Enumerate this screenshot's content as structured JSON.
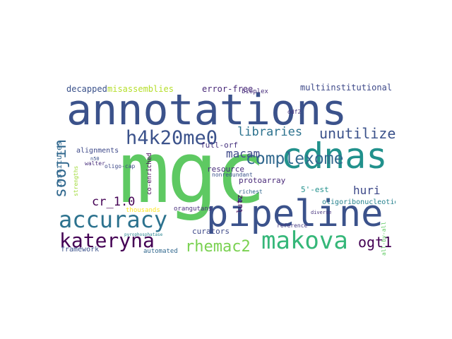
{
  "cloud": {
    "words": [
      {
        "text": "annotations",
        "color": "#3b528b"
      },
      {
        "text": "mgc",
        "color": "#5ec962"
      },
      {
        "text": "pipeline",
        "color": "#3b528b"
      },
      {
        "text": "cdnas",
        "color": "#21918c"
      },
      {
        "text": "accuracy",
        "color": "#2c728e"
      },
      {
        "text": "makova",
        "color": "#35b779"
      },
      {
        "text": "h4k20me0",
        "color": "#3b528b"
      },
      {
        "text": "kateryna",
        "color": "#440154"
      },
      {
        "text": "complexome",
        "color": "#31688e"
      },
      {
        "text": "rhemac2",
        "color": "#7ad151"
      },
      {
        "text": "soojin",
        "color": "#31688e"
      },
      {
        "text": "unutilized",
        "color": "#3b528b"
      },
      {
        "text": "ogt1",
        "color": "#440154"
      },
      {
        "text": "libraries",
        "color": "#2c728e"
      },
      {
        "text": "huri",
        "color": "#3e4989"
      },
      {
        "text": "macam",
        "color": "#3e4989"
      },
      {
        "text": "misassemblies",
        "color": "#b5de2b"
      },
      {
        "text": "error-free",
        "color": "#482878"
      },
      {
        "text": "multiinstitutional",
        "color": "#3e4989"
      },
      {
        "text": "decapped",
        "color": "#3b528b"
      },
      {
        "text": "full-orf",
        "color": "#46327e"
      },
      {
        "text": "resource",
        "color": "#472d7b"
      },
      {
        "text": "cr_1.0",
        "color": "#440154"
      },
      {
        "text": "curators",
        "color": "#3e4989"
      },
      {
        "text": "protoarray",
        "color": "#482878"
      },
      {
        "text": "5'-est",
        "color": "#21918c"
      },
      {
        "text": "framework",
        "color": "#3b528b"
      },
      {
        "text": "institutes",
        "color": "#31688e"
      },
      {
        "text": "alignments",
        "color": "#3e4989"
      },
      {
        "text": "oligoribonucleotide",
        "color": "#26828e"
      },
      {
        "text": "orangutans",
        "color": "#472d7b"
      },
      {
        "text": "automated",
        "color": "#31688e"
      },
      {
        "text": "thousands",
        "color": "#fde725"
      },
      {
        "text": "co-enriched",
        "color": "#440154"
      },
      {
        "text": "oligo-cap",
        "color": "#3e4989"
      },
      {
        "text": "bioplex",
        "color": "#472d7b"
      },
      {
        "text": "odf2",
        "color": "#46327e"
      },
      {
        "text": "lutz",
        "color": "#440154"
      },
      {
        "text": "nonredundant",
        "color": "#3b528b"
      },
      {
        "text": "richest",
        "color": "#31688e"
      },
      {
        "text": "reference",
        "color": "#443983"
      },
      {
        "text": "strengths",
        "color": "#a0da39"
      },
      {
        "text": "pyrophosphatase",
        "color": "#26828e"
      },
      {
        "text": "all-by-all",
        "color": "#5ec962"
      },
      {
        "text": "walter",
        "color": "#472d7b"
      },
      {
        "text": "diverse",
        "color": "#46327e"
      },
      {
        "text": "n50",
        "color": "#3b528b"
      }
    ]
  }
}
